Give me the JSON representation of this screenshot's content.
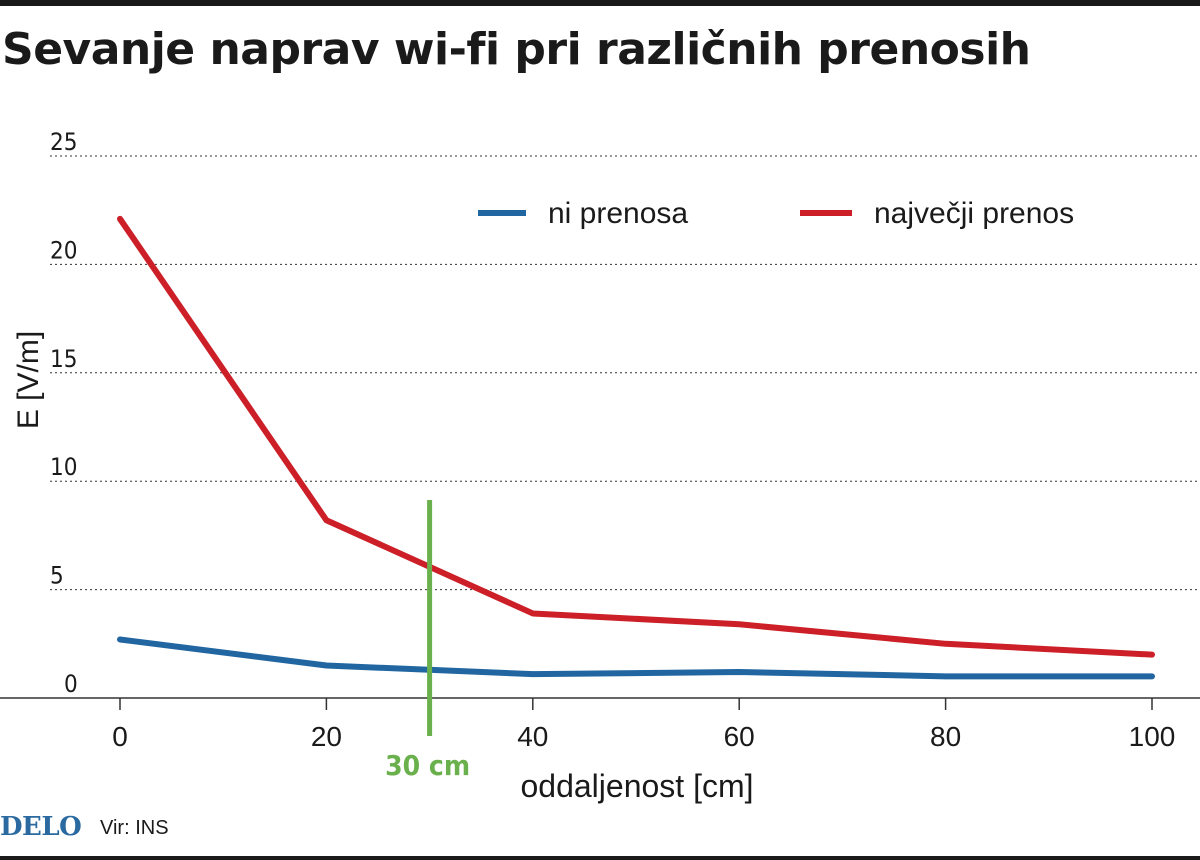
{
  "title": "Sevanje naprav wi-fi pri različnih prenosih",
  "footer": {
    "logo": "DELO",
    "source": "Vir: INS"
  },
  "colors": {
    "blue": "#2166a0",
    "red": "#cc1f27",
    "green": "#6ab04c",
    "grid": "#333333",
    "text": "#1a1a1a"
  },
  "chart_data": {
    "type": "line",
    "xlabel": "oddaljenost [cm]",
    "ylabel": "E [V/m]",
    "xlim": [
      0,
      100
    ],
    "ylim": [
      0,
      25
    ],
    "x_ticks": [
      0,
      20,
      40,
      60,
      80,
      100
    ],
    "y_ticks": [
      0,
      5,
      10,
      15,
      20,
      25
    ],
    "grid": true,
    "legend_placement": "top-right",
    "series": [
      {
        "name": "ni prenosa",
        "color": "#2166a0",
        "x": [
          0,
          20,
          40,
          60,
          80,
          100
        ],
        "y": [
          2.7,
          1.5,
          1.1,
          1.2,
          1.0,
          1.0
        ]
      },
      {
        "name": "največji prenos",
        "color": "#cc1f27",
        "x": [
          0,
          20,
          40,
          60,
          80,
          100
        ],
        "y": [
          22.1,
          8.2,
          3.9,
          3.4,
          2.5,
          2.0
        ]
      }
    ],
    "annotation": {
      "x": 30,
      "label": "30 cm",
      "color": "#6ab04c"
    }
  }
}
